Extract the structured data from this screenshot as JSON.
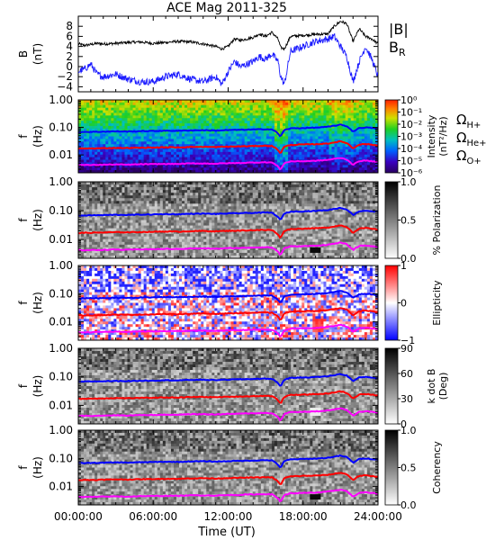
{
  "title": "ACE Mag 2011-325",
  "xlabel": "Time (UT)",
  "colors": {
    "btotal": "#000000",
    "br": "#1a1aff",
    "h": "#0000ff",
    "he": "#ff0000",
    "o": "#ff00ff"
  },
  "chart_data": [
    {
      "type": "line",
      "ylabel": "B\n(nT)",
      "yticks": [
        "-4",
        "-2",
        "0",
        "2",
        "4",
        "6",
        "8"
      ],
      "ylim": [
        -5,
        10
      ],
      "xlim_hours": [
        0,
        24
      ],
      "legend": [
        {
          "label": "|B|",
          "color": "#000000"
        },
        {
          "label": "B",
          "sub": "R",
          "color": "#1a1aff"
        }
      ],
      "series": [
        {
          "name": "|B|",
          "x": [
            0,
            0.5,
            1,
            1.5,
            2,
            3,
            4,
            5,
            6,
            7,
            8,
            9,
            10,
            11,
            11.5,
            12,
            12.5,
            13,
            14,
            14.5,
            15,
            15.5,
            16,
            16.2,
            16.5,
            17,
            18,
            19,
            20,
            20.5,
            21,
            21.5,
            22,
            22.5,
            23,
            23.5,
            24
          ],
          "y": [
            4.5,
            4.2,
            4.4,
            4.6,
            4.5,
            4.6,
            4.8,
            4.9,
            4.6,
            4.8,
            5.0,
            4.9,
            4.5,
            4.0,
            3.5,
            4.0,
            5.5,
            5.2,
            5.8,
            6.5,
            6.0,
            6.8,
            5.5,
            3.8,
            3.5,
            6.0,
            6.2,
            6.4,
            6.5,
            8.0,
            9.0,
            8.5,
            5.0,
            7.5,
            6.0,
            5.5,
            4.5
          ]
        },
        {
          "name": "BR",
          "x": [
            0,
            0.5,
            1,
            1.5,
            2,
            3,
            4,
            5,
            6,
            7,
            8,
            9,
            10,
            11,
            11.5,
            12,
            12.5,
            13,
            14,
            14.5,
            15,
            15.5,
            16,
            16.2,
            16.5,
            17,
            18,
            19,
            20,
            20.5,
            21,
            21.5,
            22,
            22.5,
            23,
            23.5,
            24
          ],
          "y": [
            -1.0,
            -0.5,
            0.5,
            -1.5,
            -2.0,
            -1.5,
            -2.5,
            -3.0,
            -3.0,
            -2.0,
            -1.5,
            -2.5,
            -3.0,
            -2.0,
            -3.5,
            -1.0,
            1.0,
            0.0,
            1.0,
            2.0,
            1.5,
            2.5,
            1.0,
            -2.0,
            -3.5,
            3.0,
            4.0,
            5.0,
            5.5,
            6.0,
            4.0,
            2.0,
            -3.0,
            1.0,
            4.0,
            1.5,
            -2.0
          ]
        }
      ]
    },
    {
      "type": "heatmap",
      "ylabel": "f\n(Hz)",
      "yticks": [
        "0.01",
        "0.10",
        "1.00"
      ],
      "colorbar": {
        "label": "Intensity\n(nT²/Hz)",
        "ticks": [
          "10⁰",
          "10⁻¹",
          "10⁻²",
          "10⁻³",
          "10⁻⁴",
          "10⁻⁵",
          "10⁻⁶"
        ],
        "colormap": "rainbow"
      },
      "legend": [
        {
          "label": "Ω",
          "sub": "H+",
          "color": "#0000ff"
        },
        {
          "label": "Ω",
          "sub": "He+",
          "color": "#ff0000"
        },
        {
          "label": "Ω",
          "sub": "O+",
          "color": "#ff00ff"
        }
      ]
    },
    {
      "type": "heatmap",
      "ylabel": "f\n(Hz)",
      "yticks": [
        "0.01",
        "0.10",
        "1.00"
      ],
      "colorbar": {
        "label": "% Polarization",
        "ticks": [
          "1.0",
          "0.5",
          "0.0"
        ],
        "colormap": "gray"
      }
    },
    {
      "type": "heatmap",
      "ylabel": "f\n(Hz)",
      "yticks": [
        "0.01",
        "0.10",
        "1.00"
      ],
      "colorbar": {
        "label": "Ellipticity",
        "ticks": [
          "1",
          "0",
          "−1"
        ],
        "colormap": "bwr"
      }
    },
    {
      "type": "heatmap",
      "ylabel": "f\n(Hz)",
      "yticks": [
        "0.01",
        "0.10",
        "1.00"
      ],
      "colorbar": {
        "label": "k dot B\n(Deg)",
        "ticks": [
          "90",
          "60",
          "30",
          "0"
        ],
        "colormap": "gray"
      }
    },
    {
      "type": "heatmap",
      "ylabel": "f\n(Hz)",
      "yticks": [
        "0.01",
        "0.10",
        "1.00"
      ],
      "colorbar": {
        "label": "Coherency",
        "ticks": [
          "1.0",
          "0.5",
          "0.0"
        ],
        "colormap": "gray"
      }
    }
  ],
  "xticks": [
    "00:00:00",
    "06:00:00",
    "12:00:00",
    "18:00:00",
    "24:00:00"
  ],
  "xtick_hours": [
    0,
    6,
    12,
    18,
    24
  ],
  "gyro": {
    "x_hours": [
      0,
      1,
      2,
      3,
      4,
      5,
      6,
      7,
      8,
      9,
      10,
      11,
      12,
      13,
      14,
      15,
      15.5,
      16,
      16.2,
      16.5,
      17,
      18,
      19,
      20,
      21,
      21.5,
      22,
      22.5,
      23,
      24
    ],
    "H": [
      0.068,
      0.069,
      0.07,
      0.072,
      0.071,
      0.073,
      0.074,
      0.076,
      0.075,
      0.078,
      0.079,
      0.077,
      0.08,
      0.082,
      0.084,
      0.086,
      0.085,
      0.06,
      0.045,
      0.08,
      0.092,
      0.095,
      0.098,
      0.105,
      0.125,
      0.11,
      0.07,
      0.095,
      0.1,
      0.09
    ],
    "He": [
      0.017,
      0.0172,
      0.0175,
      0.018,
      0.0178,
      0.0182,
      0.0185,
      0.019,
      0.0188,
      0.0195,
      0.0198,
      0.0193,
      0.02,
      0.0205,
      0.021,
      0.0215,
      0.0212,
      0.015,
      0.011,
      0.02,
      0.023,
      0.024,
      0.0245,
      0.026,
      0.031,
      0.027,
      0.017,
      0.024,
      0.025,
      0.022
    ],
    "O": [
      0.0043,
      0.0043,
      0.0044,
      0.0045,
      0.0044,
      0.0046,
      0.0046,
      0.0047,
      0.0047,
      0.0049,
      0.0049,
      0.0048,
      0.005,
      0.0051,
      0.0053,
      0.0054,
      0.0053,
      0.0038,
      0.0028,
      0.005,
      0.0058,
      0.0059,
      0.0061,
      0.0066,
      0.0078,
      0.0068,
      0.0043,
      0.006,
      0.0062,
      0.0056
    ]
  }
}
